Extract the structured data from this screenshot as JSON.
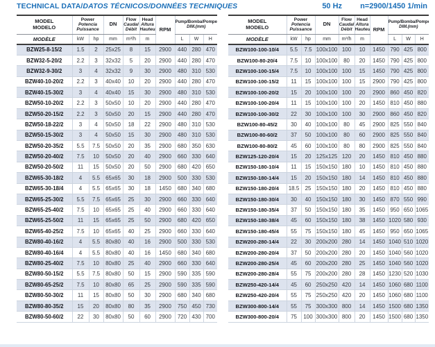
{
  "page": {
    "title_plain": "TECHNICAL DATA/",
    "title_italic": "DATOS TÉCNICOS/DONNÉES TECHNIQUES",
    "frequency": "50 Hz",
    "speed": "n=2900/1450 1/min"
  },
  "colors": {
    "accent_blue": "#1b6fb8",
    "row_shade": "#dde3ee",
    "grid_line": "#ccd4df"
  },
  "header": {
    "model": [
      "MODEL",
      "MODELO",
      "MODÈLE"
    ],
    "power": [
      "Power",
      "Potencia",
      "Puissance"
    ],
    "power_units": [
      "kW",
      "hp"
    ],
    "dn_label": "DN",
    "dn_unit": "mm",
    "flow": [
      "Flow",
      "Caudal",
      "Débit"
    ],
    "flow_unit": "m³/h",
    "head": [
      "Head",
      "Altura",
      "Hauteur"
    ],
    "head_unit": "m",
    "rpm_label": "RPM",
    "dim_label": "Pump/Bomba/Pompe",
    "dim_sublabel": "DIM.(mm)",
    "dim_units": [
      "L",
      "W",
      "H"
    ]
  },
  "tables": [
    {
      "rows": [
        [
          "BZW25-8-15/2",
          "1.5",
          "2",
          "25x25",
          "8",
          "15",
          "2900",
          "440",
          "280",
          "470"
        ],
        [
          "BZW32-5-20/2",
          "2.2",
          "3",
          "32x32",
          "5",
          "20",
          "2900",
          "440",
          "280",
          "470"
        ],
        [
          "BZW32-9-30/2",
          "3",
          "4",
          "32x32",
          "9",
          "30",
          "2900",
          "480",
          "310",
          "530"
        ],
        [
          "BZW40-10-20/2",
          "2.2",
          "3",
          "40x40",
          "10",
          "20",
          "2900",
          "440",
          "280",
          "470"
        ],
        [
          "BZW40-15-30/2",
          "3",
          "4",
          "40x40",
          "15",
          "30",
          "2900",
          "480",
          "310",
          "530"
        ],
        [
          "BZW50-10-20/2",
          "2.2",
          "3",
          "50x50",
          "10",
          "20",
          "2900",
          "440",
          "280",
          "470"
        ],
        [
          "BZW50-20-15/2",
          "2.2",
          "3",
          "50x50",
          "20",
          "15",
          "2900",
          "440",
          "280",
          "470"
        ],
        [
          "BZW50-18-22/2",
          "3",
          "4",
          "50x50",
          "18",
          "22",
          "2900",
          "480",
          "310",
          "530"
        ],
        [
          "BZW50-15-30/2",
          "3",
          "4",
          "50x50",
          "15",
          "30",
          "2900",
          "480",
          "310",
          "530"
        ],
        [
          "BZW50-20-35/2",
          "5.5",
          "7.5",
          "50x50",
          "20",
          "35",
          "2900",
          "680",
          "350",
          "630"
        ],
        [
          "BZW50-20-40/2",
          "7.5",
          "10",
          "50x50",
          "20",
          "40",
          "2900",
          "660",
          "330",
          "640"
        ],
        [
          "BZW50-20-50/2",
          "11",
          "15",
          "50x50",
          "20",
          "50",
          "2900",
          "680",
          "420",
          "650"
        ],
        [
          "BZW65-30-18/2",
          "4",
          "5.5",
          "65x65",
          "30",
          "18",
          "2900",
          "500",
          "330",
          "530"
        ],
        [
          "BZW65-30-18/4",
          "4",
          "5.5",
          "65x65",
          "30",
          "18",
          "1450",
          "680",
          "340",
          "680"
        ],
        [
          "BZW65-25-30/2",
          "5.5",
          "7.5",
          "65x65",
          "25",
          "30",
          "2900",
          "660",
          "330",
          "640"
        ],
        [
          "BZW65-25-40/2",
          "7.5",
          "10",
          "65x65",
          "25",
          "40",
          "2900",
          "660",
          "330",
          "640"
        ],
        [
          "BZW65-25-50/2",
          "11",
          "15",
          "65x65",
          "25",
          "50",
          "2900",
          "680",
          "420",
          "650"
        ],
        [
          "BZW65-40-25/2",
          "7.5",
          "10",
          "65x65",
          "40",
          "25",
          "2900",
          "660",
          "330",
          "640"
        ],
        [
          "BZW80-40-16/2",
          "4",
          "5.5",
          "80x80",
          "40",
          "16",
          "2900",
          "500",
          "330",
          "530"
        ],
        [
          "BZW80-40-16/4",
          "4",
          "5.5",
          "80x80",
          "40",
          "16",
          "1450",
          "680",
          "340",
          "680"
        ],
        [
          "BZW80-25-40/2",
          "7.5",
          "10",
          "80x80",
          "25",
          "40",
          "2900",
          "660",
          "330",
          "640"
        ],
        [
          "BZW80-50-15/2",
          "5.5",
          "7.5",
          "80x80",
          "50",
          "15",
          "2900",
          "590",
          "335",
          "590"
        ],
        [
          "BZW80-65-25/2",
          "7.5",
          "10",
          "80x80",
          "65",
          "25",
          "2900",
          "590",
          "335",
          "590"
        ],
        [
          "BZW80-50-30/2",
          "11",
          "15",
          "80x80",
          "50",
          "30",
          "2900",
          "680",
          "340",
          "680"
        ],
        [
          "BZW80-80-35/2",
          "15",
          "20",
          "80x80",
          "80",
          "35",
          "2900",
          "750",
          "450",
          "730"
        ],
        [
          "BZW80-50-60/2",
          "22",
          "30",
          "80x80",
          "50",
          "60",
          "2900",
          "720",
          "430",
          "700"
        ]
      ]
    },
    {
      "rows": [
        [
          "BZW100-100-10/4",
          "5.5",
          "7.5",
          "100x100",
          "100",
          "10",
          "1450",
          "790",
          "425",
          "800"
        ],
        [
          "BZW100-80-20/4",
          "7.5",
          "10",
          "100x100",
          "80",
          "20",
          "1450",
          "790",
          "425",
          "800"
        ],
        [
          "BZW100-100-15/4",
          "7.5",
          "10",
          "100x100",
          "100",
          "15",
          "1450",
          "790",
          "425",
          "800"
        ],
        [
          "BZW100-100-15/2",
          "11",
          "15",
          "100x100",
          "100",
          "15",
          "2900",
          "790",
          "425",
          "800"
        ],
        [
          "BZW100-100-20/2",
          "15",
          "20",
          "100x100",
          "100",
          "20",
          "2900",
          "860",
          "450",
          "820"
        ],
        [
          "BZW100-100-20/4",
          "11",
          "15",
          "100x100",
          "100",
          "20",
          "1450",
          "810",
          "450",
          "880"
        ],
        [
          "BZW100-100-30/2",
          "22",
          "30",
          "100x100",
          "100",
          "30",
          "2900",
          "860",
          "450",
          "820"
        ],
        [
          "BZW100-80-45/2",
          "30",
          "40",
          "100x100",
          "80",
          "45",
          "2900",
          "825",
          "550",
          "840"
        ],
        [
          "BZW100-80-60/2",
          "37",
          "50",
          "100x100",
          "80",
          "60",
          "2900",
          "825",
          "550",
          "840"
        ],
        [
          "BZW100-80-80/2",
          "45",
          "60",
          "100x100",
          "80",
          "80",
          "2900",
          "825",
          "550",
          "840"
        ],
        [
          "BZW125-120-20/4",
          "15",
          "20",
          "125x125",
          "120",
          "20",
          "1450",
          "810",
          "450",
          "880"
        ],
        [
          "BZW150-180-10/4",
          "11",
          "15",
          "150x150",
          "180",
          "10",
          "1450",
          "810",
          "450",
          "880"
        ],
        [
          "BZW150-180-14/4",
          "15",
          "20",
          "150x150",
          "180",
          "14",
          "1450",
          "810",
          "450",
          "880"
        ],
        [
          "BZW150-180-20/4",
          "18.5",
          "25",
          "150x150",
          "180",
          "20",
          "1450",
          "810",
          "450",
          "880"
        ],
        [
          "BZW150-180-30/4",
          "30",
          "40",
          "150x150",
          "180",
          "30",
          "1450",
          "870",
          "550",
          "990"
        ],
        [
          "BZW150-180-35/4",
          "37",
          "50",
          "150x150",
          "180",
          "35",
          "1450",
          "950",
          "650",
          "1065"
        ],
        [
          "BZW150-180-38/4",
          "45",
          "60",
          "150x150",
          "180",
          "38",
          "1450",
          "1020",
          "580",
          "930"
        ],
        [
          "BZW150-180-45/4",
          "55",
          "75",
          "150x150",
          "180",
          "45",
          "1450",
          "950",
          "650",
          "1065"
        ],
        [
          "BZW200-280-14/4",
          "22",
          "30",
          "200x200",
          "280",
          "14",
          "1450",
          "1040",
          "510",
          "1020"
        ],
        [
          "BZW200-280-20/4",
          "37",
          "50",
          "200x200",
          "280",
          "20",
          "1450",
          "1040",
          "560",
          "1020"
        ],
        [
          "BZW200-280-25/4",
          "45",
          "60",
          "200x200",
          "280",
          "25",
          "1450",
          "1040",
          "560",
          "1020"
        ],
        [
          "BZW200-280-28/4",
          "55",
          "75",
          "200x200",
          "280",
          "28",
          "1450",
          "1230",
          "520",
          "1030"
        ],
        [
          "BZW250-420-14/4",
          "45",
          "60",
          "250x250",
          "420",
          "14",
          "1450",
          "1060",
          "680",
          "1100"
        ],
        [
          "BZW250-420-20/4",
          "55",
          "75",
          "250x250",
          "420",
          "20",
          "1450",
          "1060",
          "680",
          "1100"
        ],
        [
          "BZW300-800-14/4",
          "55",
          "75",
          "300x300",
          "800",
          "14",
          "1450",
          "1500",
          "680",
          "1350"
        ],
        [
          "BZW300-800-20/4",
          "75",
          "100",
          "300x300",
          "800",
          "20",
          "1450",
          "1500",
          "680",
          "1350"
        ]
      ]
    }
  ]
}
